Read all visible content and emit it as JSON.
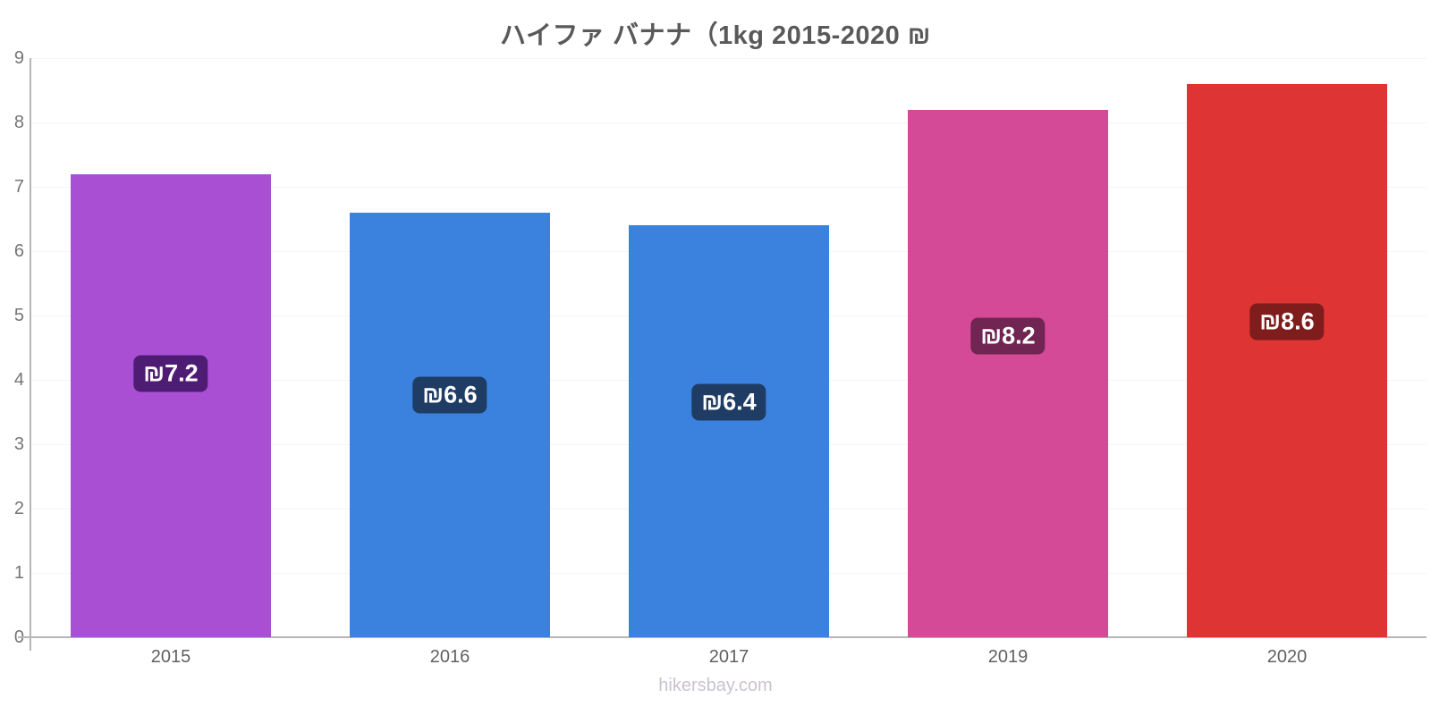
{
  "chart": {
    "title": "ハイファ バナナ（1kg 2015-2020 ₪"
  },
  "footer": {
    "text": "hikersbay.com"
  },
  "chart_data": {
    "type": "bar",
    "title": "ハイファ バナナ（1kg 2015-2020 ₪",
    "categories": [
      "2015",
      "2016",
      "2017",
      "2019",
      "2020"
    ],
    "values": [
      7.2,
      6.6,
      6.4,
      8.2,
      8.6
    ],
    "value_labels": [
      "₪7.2",
      "₪6.6",
      "₪6.4",
      "₪8.2",
      "₪8.6"
    ],
    "currency_symbol": "₪",
    "bar_colors": [
      "#a84fd4",
      "#3b82de",
      "#3b82de",
      "#d44a96",
      "#df3434"
    ],
    "badge_colors": [
      "#4e1d73",
      "#1e3c64",
      "#1e3c64",
      "#702552",
      "#7f1d1d"
    ],
    "xlabel": "",
    "ylabel": "",
    "ylim": [
      0,
      9
    ],
    "yticks": [
      0,
      1,
      2,
      3,
      4,
      5,
      6,
      7,
      8,
      9
    ],
    "grid": true,
    "legend_position": "none"
  },
  "colors": {
    "background": "#ffffff",
    "axis": "#b6b6b6",
    "grid": "#f5f5f5",
    "title_text": "#595959",
    "ytick_text": "#757575",
    "xtick_text": "#616161",
    "badge_text": "#ffffff",
    "footer_text": "#c9c3ce"
  }
}
